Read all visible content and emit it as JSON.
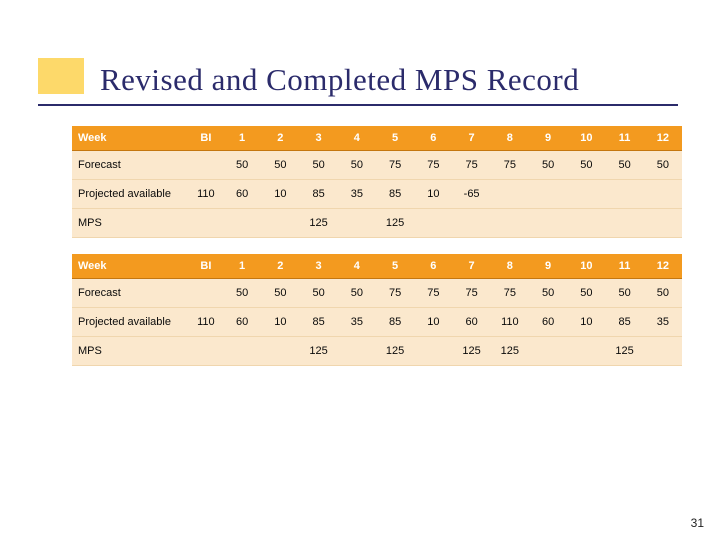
{
  "title": "Revised and Completed MPS Record",
  "page_number": "31",
  "colors": {
    "header_bg": "#f39a1f",
    "header_text": "#ffffff",
    "body_bg": "#fbe8cd",
    "row_divider": "#f0d6ae",
    "title_color": "#2b2b6b",
    "accent_box": "#fdd96a"
  },
  "header_labels": {
    "week": "Week",
    "bi": "BI"
  },
  "weeks": [
    "1",
    "2",
    "3",
    "4",
    "5",
    "6",
    "7",
    "8",
    "9",
    "10",
    "11",
    "12"
  ],
  "row_labels": {
    "forecast": "Forecast",
    "projected": "Projected available",
    "mps": "MPS"
  },
  "table1": {
    "forecast_bi": "",
    "forecast": [
      "50",
      "50",
      "50",
      "50",
      "75",
      "75",
      "75",
      "75",
      "50",
      "50",
      "50",
      "50"
    ],
    "projected_bi": "110",
    "projected": [
      "60",
      "10",
      "85",
      "35",
      "85",
      "10",
      "-65",
      "",
      "",
      "",
      "",
      ""
    ],
    "mps_bi": "",
    "mps": [
      "",
      "",
      "125",
      "",
      "125",
      "",
      "",
      "",
      "",
      "",
      "",
      ""
    ]
  },
  "table2": {
    "forecast_bi": "",
    "forecast": [
      "50",
      "50",
      "50",
      "50",
      "75",
      "75",
      "75",
      "75",
      "50",
      "50",
      "50",
      "50"
    ],
    "projected_bi": "110",
    "projected": [
      "60",
      "10",
      "85",
      "35",
      "85",
      "10",
      "60",
      "110",
      "60",
      "10",
      "85",
      "35"
    ],
    "mps_bi": "",
    "mps": [
      "",
      "",
      "125",
      "",
      "125",
      "",
      "125",
      "125",
      "",
      "",
      "125",
      ""
    ]
  }
}
